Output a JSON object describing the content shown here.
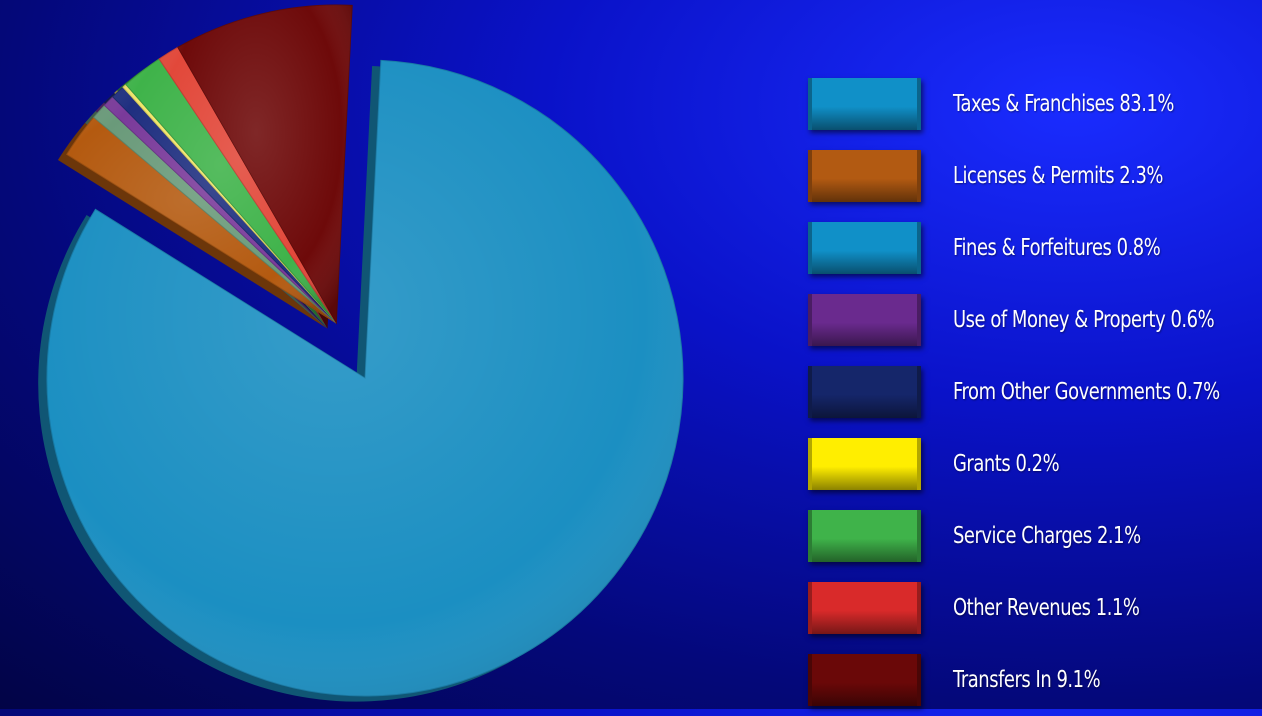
{
  "chart_data": {
    "type": "pie",
    "title": "",
    "legend_position": "right",
    "slices": [
      {
        "label": "Taxes & Franchises 83.1%",
        "value": 83.1,
        "color": "#1b8fc2",
        "exploded": false
      },
      {
        "label": "Licenses & Permits 2.3%",
        "value": 2.3,
        "color": "#b45a10",
        "exploded": true
      },
      {
        "label": "Fines & Forfeitures 0.8%",
        "value": 0.8,
        "color": "#6a9a7a",
        "exploded": true
      },
      {
        "label": "Use of Money & Property 0.6%",
        "value": 0.6,
        "color": "#7a3a9a",
        "exploded": true
      },
      {
        "label": "From Other Governments 0.7%",
        "value": 0.7,
        "color": "#1f2f80",
        "exploded": true
      },
      {
        "label": "Grants 0.2%",
        "value": 0.2,
        "color": "#f2e56a",
        "exploded": true
      },
      {
        "label": "Service Charges 2.1%",
        "value": 2.1,
        "color": "#3fb34a",
        "exploded": true
      },
      {
        "label": "Other Revenues 1.1%",
        "value": 1.1,
        "color": "#e2483a",
        "exploded": true
      },
      {
        "label": "Transfers In 9.1%",
        "value": 9.1,
        "color": "#6e0a0a",
        "exploded": true
      }
    ],
    "legend": [
      {
        "label": "Taxes & Franchises 83.1%",
        "color": "#1090c8"
      },
      {
        "label": "Licenses & Permits 2.3%",
        "color": "#b25a12"
      },
      {
        "label": "Fines & Forfeitures 0.8%",
        "color": "#1090c8"
      },
      {
        "label": "Use of Money & Property 0.6%",
        "color": "#6a2a8e"
      },
      {
        "label": "From Other Governments 0.7%",
        "color": "#15266a"
      },
      {
        "label": "Grants 0.2%",
        "color": "#ffee00"
      },
      {
        "label": "Service Charges 2.1%",
        "color": "#3fb34a"
      },
      {
        "label": "Other Revenues 1.1%",
        "color": "#d92a2a"
      },
      {
        "label": "Transfers In 9.1%",
        "color": "#6a0808"
      }
    ]
  }
}
